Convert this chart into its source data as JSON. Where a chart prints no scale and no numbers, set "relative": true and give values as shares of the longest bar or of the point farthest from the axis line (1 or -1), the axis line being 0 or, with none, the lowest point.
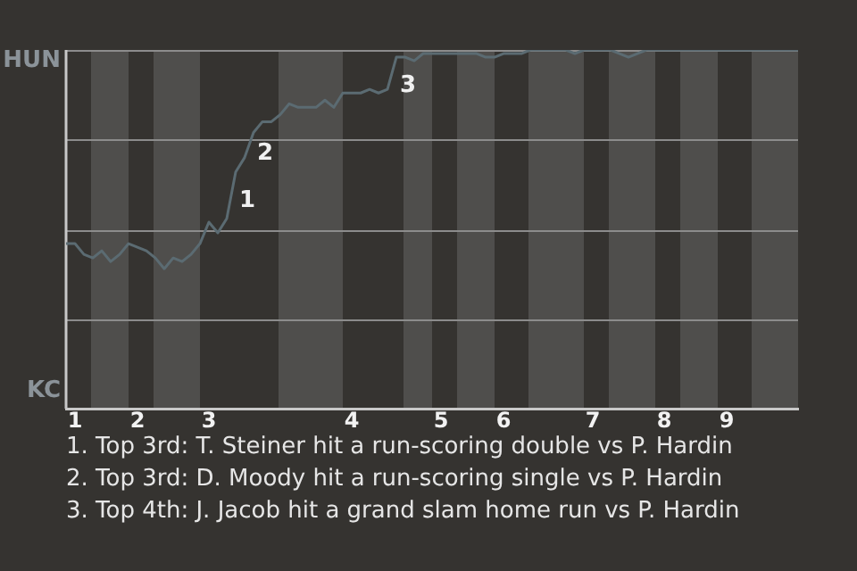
{
  "chart_data": {
    "type": "line",
    "relative": true,
    "categories": [
      null,
      "1",
      null,
      null,
      null,
      null,
      null,
      null,
      "2",
      null,
      null,
      null,
      null,
      null,
      null,
      null,
      "3",
      null,
      null,
      null,
      null,
      null,
      null,
      null,
      null,
      null,
      null,
      null,
      null,
      null,
      null,
      null,
      "4",
      null,
      null,
      null,
      null,
      null,
      null,
      null,
      null,
      null,
      "5",
      null,
      null,
      null,
      null,
      null,
      null,
      "6",
      null,
      null,
      null,
      null,
      null,
      null,
      null,
      null,
      null,
      "7",
      null,
      null,
      null,
      null,
      null,
      null,
      null,
      "8",
      null,
      null,
      null,
      null,
      null,
      null,
      "9",
      null,
      null,
      null,
      null,
      null,
      null,
      null,
      null
    ],
    "series": [
      {
        "color": "#5b6b72",
        "values": [
          0.46,
          0.46,
          0.43,
          0.42,
          0.44,
          0.41,
          0.43,
          0.46,
          0.45,
          0.44,
          0.42,
          0.39,
          0.42,
          0.41,
          0.43,
          0.46,
          0.52,
          0.49,
          0.53,
          0.66,
          0.7,
          0.77,
          0.8,
          0.8,
          0.82,
          0.85,
          0.84,
          0.84,
          0.84,
          0.86,
          0.84,
          0.88,
          0.88,
          0.88,
          0.89,
          0.88,
          0.89,
          0.98,
          0.98,
          0.97,
          0.99,
          0.99,
          0.99,
          0.99,
          0.99,
          0.99,
          0.99,
          0.98,
          0.98,
          0.99,
          0.99,
          0.99,
          1,
          1,
          1,
          1,
          1,
          0.99,
          1,
          1,
          1,
          1,
          0.99,
          0.98,
          0.99,
          1,
          1,
          1,
          1,
          1,
          1,
          1,
          1,
          1,
          1,
          1,
          1,
          1,
          1,
          1,
          1,
          1,
          1
        ]
      }
    ],
    "grid": "y",
    "marker": "none",
    "line_style": "solid",
    "annotations": [
      "HUN",
      "KC",
      "1",
      "2",
      "3",
      "1. Top 3rd: T. Steiner hit a run-scoring double vs P. Hardin",
      "2. Top 3rd: D. Moody hit a run-scoring single vs P. Hardin",
      "3. Top 4th: J. Jacob hit a grand slam home run vs P. Hardin"
    ]
  }
}
